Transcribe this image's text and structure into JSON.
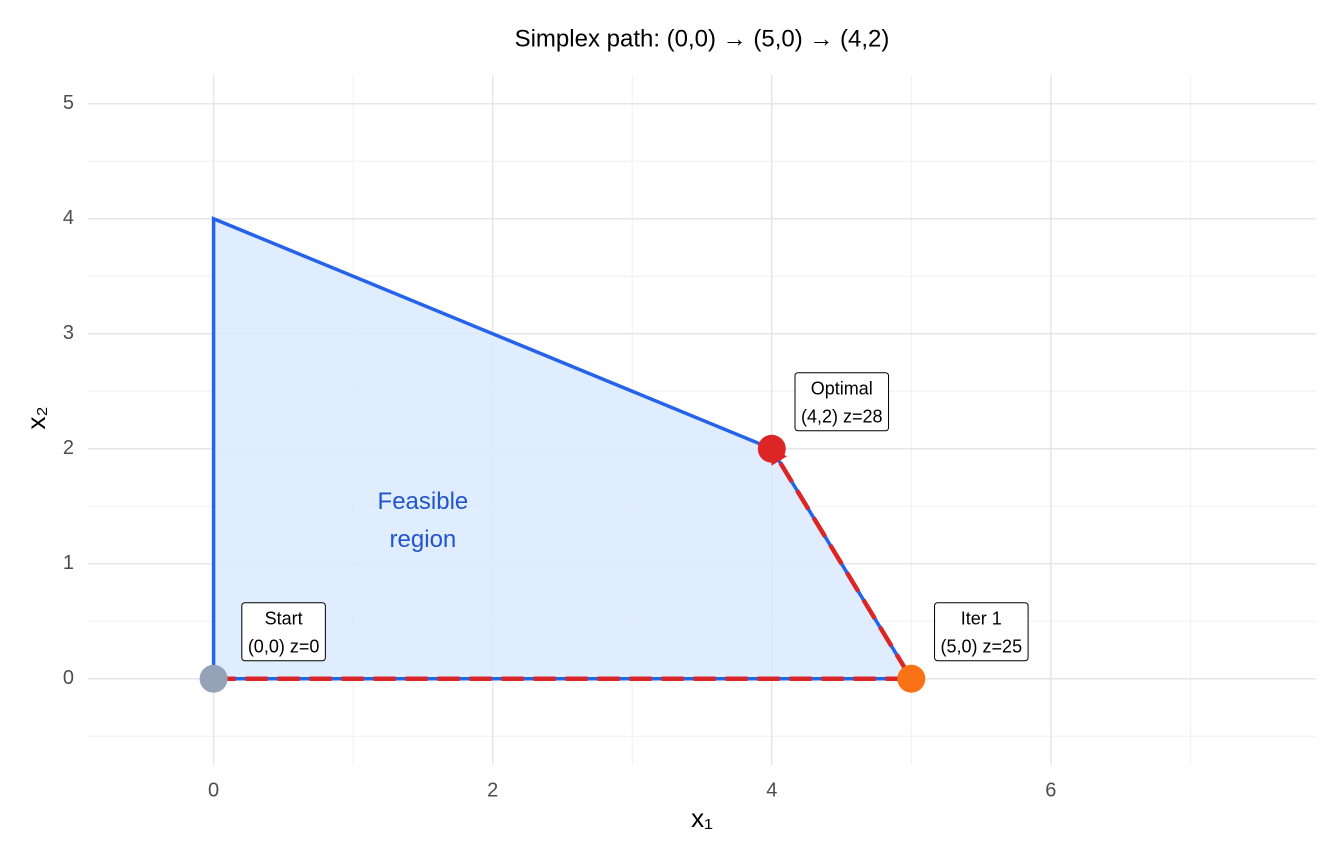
{
  "chart_data": {
    "type": "simplex",
    "title": "Simplex path: (0,0) → (5,0) → (4,2)",
    "x_label": "x₁",
    "y_label": "x₂",
    "xlim": [
      -0.9,
      7.9
    ],
    "ylim": [
      -0.75,
      5.25
    ],
    "xticks": [
      0,
      2,
      4,
      6
    ],
    "yticks": [
      0,
      1,
      2,
      3,
      4,
      5
    ],
    "xminor": [
      1,
      3,
      5,
      7
    ],
    "yminor": [
      -0.5,
      0.5,
      1.5,
      2.5,
      3.5,
      4.5
    ],
    "grid": true,
    "region": {
      "label": [
        "Feasible",
        "region"
      ],
      "label_x": 1.5,
      "label_y": 1.2,
      "x": [
        0,
        0,
        4,
        5
      ],
      "y": [
        0,
        4,
        2,
        0
      ],
      "color": "#2563eb",
      "fill": "#dbeafe"
    },
    "path": {
      "x": [
        0,
        5,
        4
      ],
      "y": [
        0,
        0,
        2
      ],
      "color": "#dc2626"
    },
    "points": {
      "x": [
        0,
        5,
        4
      ],
      "y": [
        0,
        0,
        2
      ],
      "colors": [
        "#94a3b8",
        "#f97316",
        "#dc2626"
      ],
      "labels": [
        [
          "Start",
          "(0,0) z=0"
        ],
        [
          "Iter 1",
          "(5,0) z=25"
        ],
        [
          "Optimal",
          "(4,2) z=28"
        ]
      ]
    }
  }
}
